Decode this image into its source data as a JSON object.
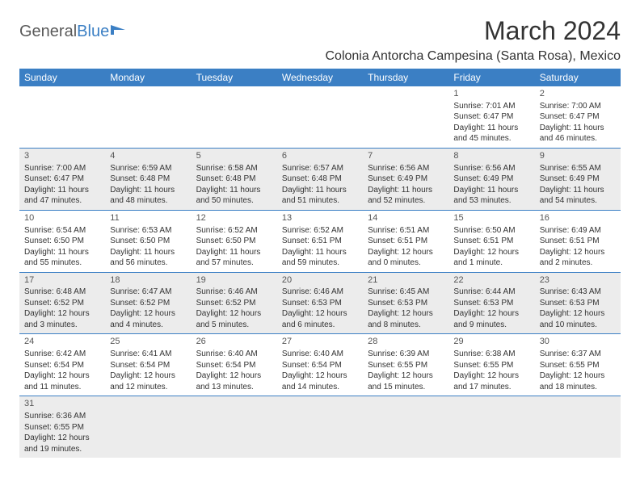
{
  "logo": {
    "part1": "General",
    "part2": "Blue"
  },
  "title": "March 2024",
  "location": "Colonia Antorcha Campesina (Santa Rosa), Mexico",
  "colors": {
    "header_bg": "#3b7fc4",
    "header_text": "#ffffff",
    "shaded_bg": "#ececec",
    "border": "#3b7fc4",
    "text": "#333333",
    "logo_gray": "#5a5a5a",
    "logo_blue": "#3b7fc4"
  },
  "dayHeaders": [
    "Sunday",
    "Monday",
    "Tuesday",
    "Wednesday",
    "Thursday",
    "Friday",
    "Saturday"
  ],
  "weeks": [
    {
      "shaded": false,
      "days": [
        null,
        null,
        null,
        null,
        null,
        {
          "n": "1",
          "sr": "Sunrise: 7:01 AM",
          "ss": "Sunset: 6:47 PM",
          "dl1": "Daylight: 11 hours",
          "dl2": "and 45 minutes."
        },
        {
          "n": "2",
          "sr": "Sunrise: 7:00 AM",
          "ss": "Sunset: 6:47 PM",
          "dl1": "Daylight: 11 hours",
          "dl2": "and 46 minutes."
        }
      ]
    },
    {
      "shaded": true,
      "days": [
        {
          "n": "3",
          "sr": "Sunrise: 7:00 AM",
          "ss": "Sunset: 6:47 PM",
          "dl1": "Daylight: 11 hours",
          "dl2": "and 47 minutes."
        },
        {
          "n": "4",
          "sr": "Sunrise: 6:59 AM",
          "ss": "Sunset: 6:48 PM",
          "dl1": "Daylight: 11 hours",
          "dl2": "and 48 minutes."
        },
        {
          "n": "5",
          "sr": "Sunrise: 6:58 AM",
          "ss": "Sunset: 6:48 PM",
          "dl1": "Daylight: 11 hours",
          "dl2": "and 50 minutes."
        },
        {
          "n": "6",
          "sr": "Sunrise: 6:57 AM",
          "ss": "Sunset: 6:48 PM",
          "dl1": "Daylight: 11 hours",
          "dl2": "and 51 minutes."
        },
        {
          "n": "7",
          "sr": "Sunrise: 6:56 AM",
          "ss": "Sunset: 6:49 PM",
          "dl1": "Daylight: 11 hours",
          "dl2": "and 52 minutes."
        },
        {
          "n": "8",
          "sr": "Sunrise: 6:56 AM",
          "ss": "Sunset: 6:49 PM",
          "dl1": "Daylight: 11 hours",
          "dl2": "and 53 minutes."
        },
        {
          "n": "9",
          "sr": "Sunrise: 6:55 AM",
          "ss": "Sunset: 6:49 PM",
          "dl1": "Daylight: 11 hours",
          "dl2": "and 54 minutes."
        }
      ]
    },
    {
      "shaded": false,
      "days": [
        {
          "n": "10",
          "sr": "Sunrise: 6:54 AM",
          "ss": "Sunset: 6:50 PM",
          "dl1": "Daylight: 11 hours",
          "dl2": "and 55 minutes."
        },
        {
          "n": "11",
          "sr": "Sunrise: 6:53 AM",
          "ss": "Sunset: 6:50 PM",
          "dl1": "Daylight: 11 hours",
          "dl2": "and 56 minutes."
        },
        {
          "n": "12",
          "sr": "Sunrise: 6:52 AM",
          "ss": "Sunset: 6:50 PM",
          "dl1": "Daylight: 11 hours",
          "dl2": "and 57 minutes."
        },
        {
          "n": "13",
          "sr": "Sunrise: 6:52 AM",
          "ss": "Sunset: 6:51 PM",
          "dl1": "Daylight: 11 hours",
          "dl2": "and 59 minutes."
        },
        {
          "n": "14",
          "sr": "Sunrise: 6:51 AM",
          "ss": "Sunset: 6:51 PM",
          "dl1": "Daylight: 12 hours",
          "dl2": "and 0 minutes."
        },
        {
          "n": "15",
          "sr": "Sunrise: 6:50 AM",
          "ss": "Sunset: 6:51 PM",
          "dl1": "Daylight: 12 hours",
          "dl2": "and 1 minute."
        },
        {
          "n": "16",
          "sr": "Sunrise: 6:49 AM",
          "ss": "Sunset: 6:51 PM",
          "dl1": "Daylight: 12 hours",
          "dl2": "and 2 minutes."
        }
      ]
    },
    {
      "shaded": true,
      "days": [
        {
          "n": "17",
          "sr": "Sunrise: 6:48 AM",
          "ss": "Sunset: 6:52 PM",
          "dl1": "Daylight: 12 hours",
          "dl2": "and 3 minutes."
        },
        {
          "n": "18",
          "sr": "Sunrise: 6:47 AM",
          "ss": "Sunset: 6:52 PM",
          "dl1": "Daylight: 12 hours",
          "dl2": "and 4 minutes."
        },
        {
          "n": "19",
          "sr": "Sunrise: 6:46 AM",
          "ss": "Sunset: 6:52 PM",
          "dl1": "Daylight: 12 hours",
          "dl2": "and 5 minutes."
        },
        {
          "n": "20",
          "sr": "Sunrise: 6:46 AM",
          "ss": "Sunset: 6:53 PM",
          "dl1": "Daylight: 12 hours",
          "dl2": "and 6 minutes."
        },
        {
          "n": "21",
          "sr": "Sunrise: 6:45 AM",
          "ss": "Sunset: 6:53 PM",
          "dl1": "Daylight: 12 hours",
          "dl2": "and 8 minutes."
        },
        {
          "n": "22",
          "sr": "Sunrise: 6:44 AM",
          "ss": "Sunset: 6:53 PM",
          "dl1": "Daylight: 12 hours",
          "dl2": "and 9 minutes."
        },
        {
          "n": "23",
          "sr": "Sunrise: 6:43 AM",
          "ss": "Sunset: 6:53 PM",
          "dl1": "Daylight: 12 hours",
          "dl2": "and 10 minutes."
        }
      ]
    },
    {
      "shaded": false,
      "days": [
        {
          "n": "24",
          "sr": "Sunrise: 6:42 AM",
          "ss": "Sunset: 6:54 PM",
          "dl1": "Daylight: 12 hours",
          "dl2": "and 11 minutes."
        },
        {
          "n": "25",
          "sr": "Sunrise: 6:41 AM",
          "ss": "Sunset: 6:54 PM",
          "dl1": "Daylight: 12 hours",
          "dl2": "and 12 minutes."
        },
        {
          "n": "26",
          "sr": "Sunrise: 6:40 AM",
          "ss": "Sunset: 6:54 PM",
          "dl1": "Daylight: 12 hours",
          "dl2": "and 13 minutes."
        },
        {
          "n": "27",
          "sr": "Sunrise: 6:40 AM",
          "ss": "Sunset: 6:54 PM",
          "dl1": "Daylight: 12 hours",
          "dl2": "and 14 minutes."
        },
        {
          "n": "28",
          "sr": "Sunrise: 6:39 AM",
          "ss": "Sunset: 6:55 PM",
          "dl1": "Daylight: 12 hours",
          "dl2": "and 15 minutes."
        },
        {
          "n": "29",
          "sr": "Sunrise: 6:38 AM",
          "ss": "Sunset: 6:55 PM",
          "dl1": "Daylight: 12 hours",
          "dl2": "and 17 minutes."
        },
        {
          "n": "30",
          "sr": "Sunrise: 6:37 AM",
          "ss": "Sunset: 6:55 PM",
          "dl1": "Daylight: 12 hours",
          "dl2": "and 18 minutes."
        }
      ]
    },
    {
      "shaded": true,
      "days": [
        {
          "n": "31",
          "sr": "Sunrise: 6:36 AM",
          "ss": "Sunset: 6:55 PM",
          "dl1": "Daylight: 12 hours",
          "dl2": "and 19 minutes."
        },
        null,
        null,
        null,
        null,
        null,
        null
      ]
    }
  ]
}
